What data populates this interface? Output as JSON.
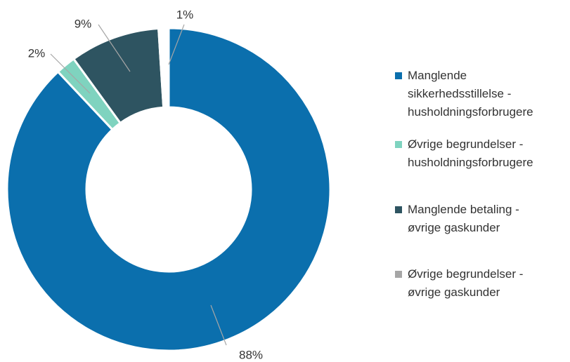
{
  "chart_data": {
    "type": "pie",
    "categories": [
      "Manglende sikkerhedsstillelse - husholdningsforbrugere",
      "Øvrige begrundelser - husholdningsforbrugere",
      "Manglende betaling - øvrige gaskunder",
      "Øvrige begrundelser - øvrige gaskunder"
    ],
    "values": [
      88,
      2,
      9,
      1
    ],
    "value_labels": [
      "88%",
      "2%",
      "9%",
      "1%"
    ],
    "colors": [
      "#0b6fad",
      "#7fd3bf",
      "#2e5461",
      "#a6a6a6"
    ],
    "legend": "right"
  }
}
